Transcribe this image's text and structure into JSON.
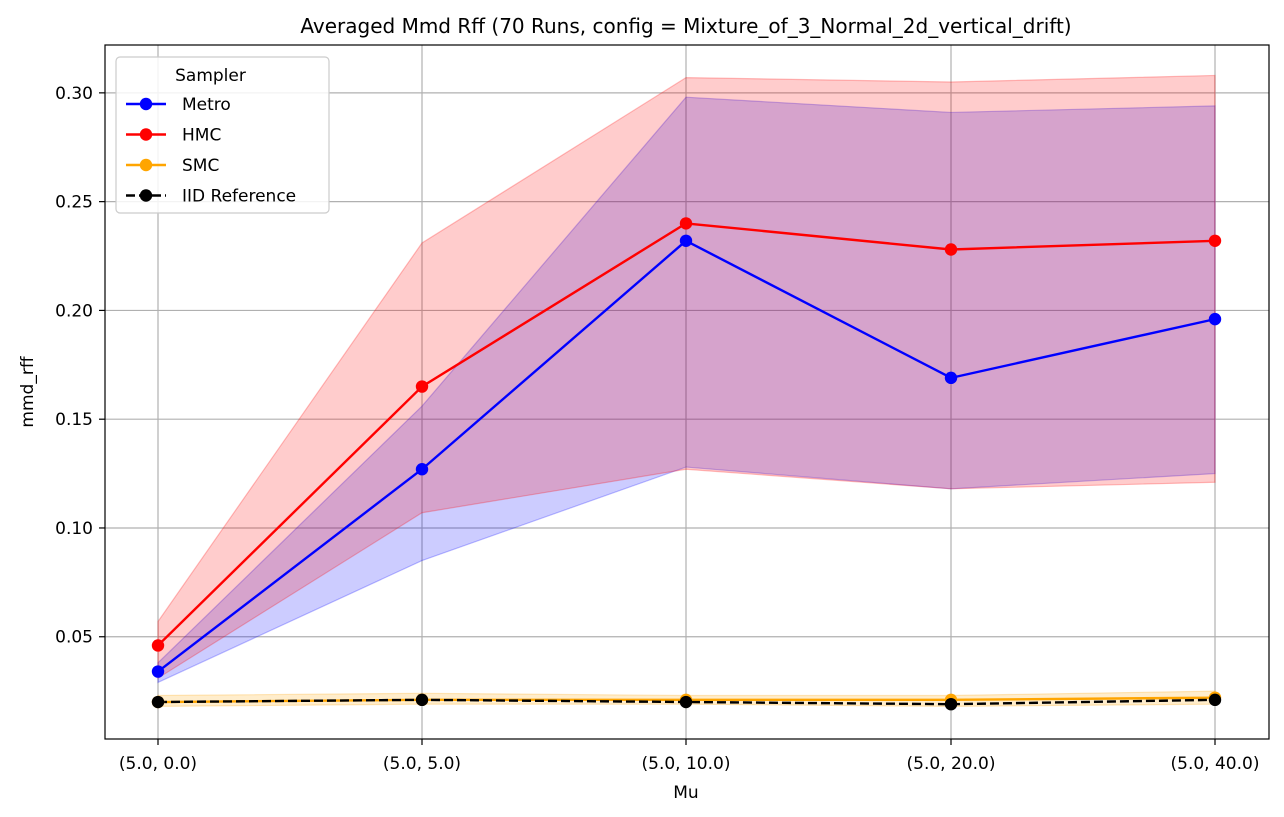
{
  "chart_data": {
    "type": "line",
    "title": "Averaged Mmd Rff (70 Runs, config = Mixture_of_3_Normal_2d_vertical_drift)",
    "xlabel": "Mu",
    "ylabel": "mmd_rff",
    "categories": [
      "(5.0, 0.0)",
      "(5.0, 5.0)",
      "(5.0, 10.0)",
      "(5.0, 20.0)",
      "(5.0, 40.0)"
    ],
    "ylim": [
      0.003,
      0.322
    ],
    "yticks": [
      0.05,
      0.1,
      0.15,
      0.2,
      0.25,
      0.3
    ],
    "ytick_labels": [
      "0.05",
      "0.10",
      "0.15",
      "0.20",
      "0.25",
      "0.30"
    ],
    "grid": true,
    "legend": {
      "title": "Sampler",
      "placement": "top-left"
    },
    "series": [
      {
        "name": "Metro",
        "color": "#0000ff",
        "style": "solid",
        "values": [
          0.034,
          0.127,
          0.232,
          0.169,
          0.196
        ],
        "band_low": [
          0.029,
          0.085,
          0.128,
          0.118,
          0.125
        ],
        "band_high": [
          0.038,
          0.156,
          0.298,
          0.291,
          0.294
        ]
      },
      {
        "name": "HMC",
        "color": "#ff0000",
        "style": "solid",
        "values": [
          0.046,
          0.165,
          0.24,
          0.228,
          0.232
        ],
        "band_low": [
          0.031,
          0.107,
          0.127,
          0.118,
          0.121
        ],
        "band_high": [
          0.057,
          0.231,
          0.307,
          0.305,
          0.308
        ]
      },
      {
        "name": "SMC",
        "color": "#ffa500",
        "style": "solid",
        "values": [
          0.02,
          0.021,
          0.021,
          0.021,
          0.022
        ],
        "band_low": [
          0.018,
          0.019,
          0.019,
          0.018,
          0.019
        ],
        "band_high": [
          0.023,
          0.024,
          0.023,
          0.023,
          0.025
        ]
      },
      {
        "name": "IID Reference",
        "color": "#000000",
        "style": "dashed",
        "values": [
          0.02,
          0.021,
          0.02,
          0.019,
          0.021
        ]
      }
    ]
  }
}
